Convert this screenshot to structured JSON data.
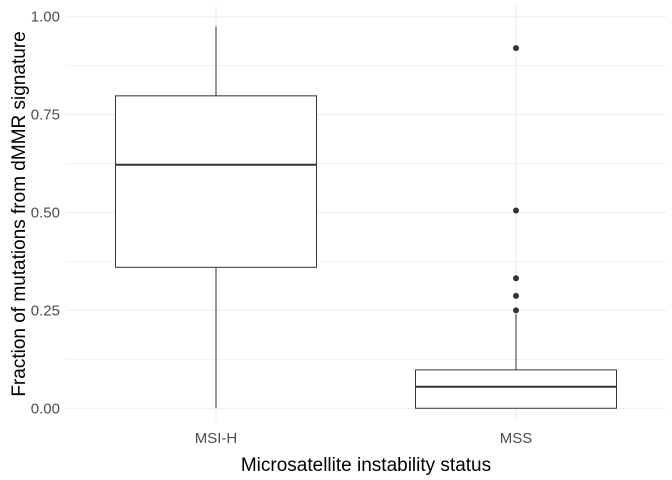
{
  "chart_data": {
    "type": "boxplot",
    "title": "",
    "xlabel": "Microsatellite instability status",
    "ylabel": "Fraction of mutations from dMMR signature",
    "ylim": [
      -0.03,
      1.03
    ],
    "y_ticks": [
      "0.00",
      "0.25",
      "0.50",
      "0.75",
      "1.00"
    ],
    "y_tick_values": [
      0,
      0.25,
      0.5,
      0.75,
      1.0
    ],
    "grid": true,
    "categories": [
      "MSI-H",
      "MSS"
    ],
    "boxes": [
      {
        "category": "MSI-H",
        "whisker_low": 0.0,
        "q1": 0.36,
        "median": 0.622,
        "q3": 0.798,
        "whisker_high": 0.975,
        "outliers": []
      },
      {
        "category": "MSS",
        "whisker_low": 0.0,
        "q1": 0.0,
        "median": 0.055,
        "q3": 0.098,
        "whisker_high": 0.24,
        "outliers": [
          0.92,
          0.505,
          0.332,
          0.287,
          0.25
        ]
      }
    ],
    "colors": {
      "box_fill": "#ffffff",
      "box_line": "#333333",
      "grid": "#ebebeb",
      "outlier": "#333333"
    }
  }
}
